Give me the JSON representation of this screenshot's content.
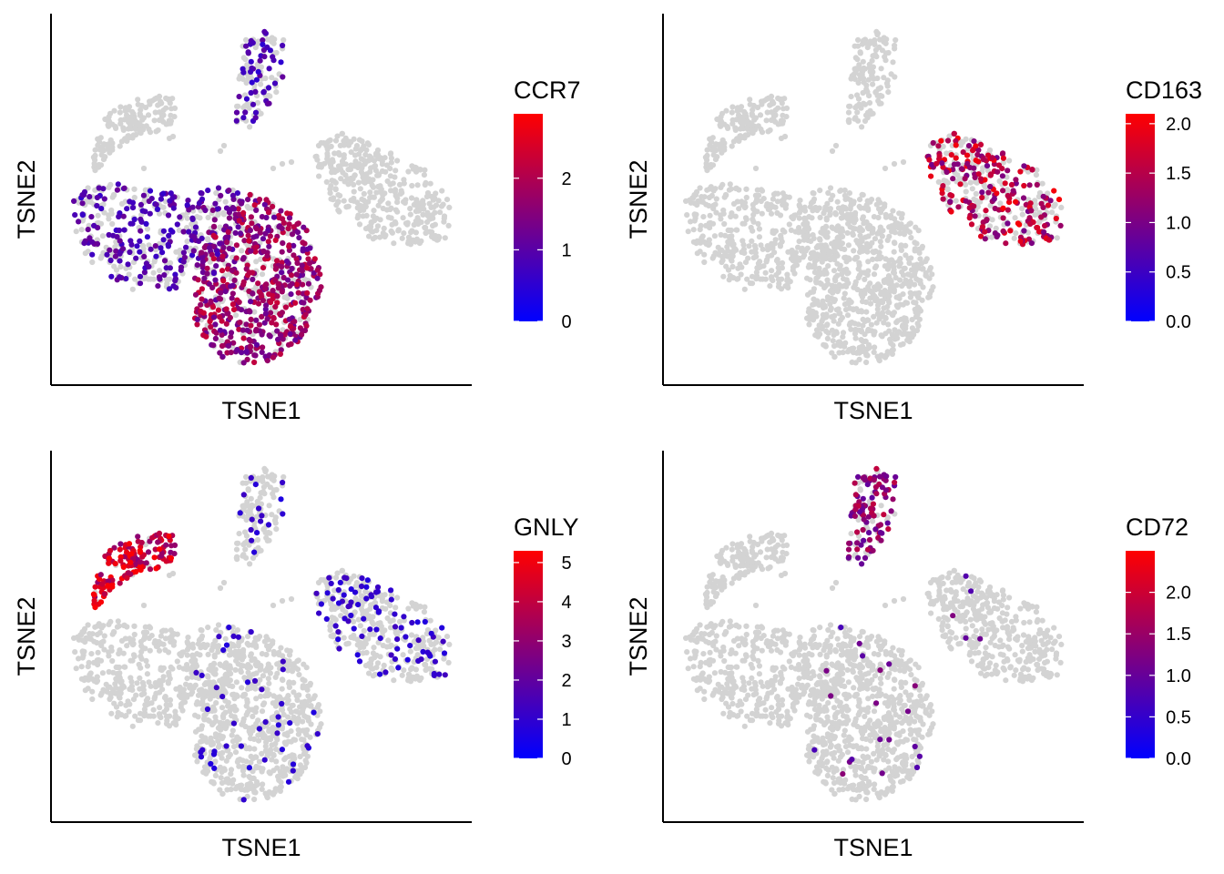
{
  "chart_data": [
    {
      "type": "scatter",
      "gene": "CCR7",
      "xlabel": "TSNE1",
      "ylabel": "TSNE2",
      "legend_title": "CCR7",
      "legend_placement": "right",
      "color_low": "#0000FF",
      "color_high": "#FF0000",
      "color_zero": "#D3D3D3",
      "scale_min": 0,
      "scale_max": 2.9,
      "legend_ticks": [
        {
          "value": 0,
          "label": "0"
        },
        {
          "value": 1,
          "label": "1"
        },
        {
          "value": 2,
          "label": "2"
        }
      ],
      "expressing_clusters": [
        {
          "cluster": "b",
          "density": 0.5,
          "level": 0.9
        },
        {
          "cluster": "c",
          "density": 0.4,
          "level": 0.8
        },
        {
          "cluster": "e",
          "density": 0.5,
          "level": 1.1
        },
        {
          "cluster": "f",
          "density": 0.72,
          "level": 1.7
        }
      ],
      "grid": false
    },
    {
      "type": "scatter",
      "gene": "CD163",
      "xlabel": "TSNE1",
      "ylabel": "TSNE2",
      "legend_title": "CD163",
      "legend_placement": "right",
      "color_low": "#0000FF",
      "color_high": "#FF0000",
      "color_zero": "#D3D3D3",
      "scale_min": 0,
      "scale_max": 2.1,
      "legend_ticks": [
        {
          "value": 0,
          "label": "0.0"
        },
        {
          "value": 0.5,
          "label": "0.5"
        },
        {
          "value": 1,
          "label": "1.0"
        },
        {
          "value": 1.5,
          "label": "1.5"
        },
        {
          "value": 2,
          "label": "2.0"
        }
      ],
      "expressing_clusters": [
        {
          "cluster": "d",
          "density": 0.55,
          "level": 1.5
        }
      ],
      "grid": false
    },
    {
      "type": "scatter",
      "gene": "GNLY",
      "xlabel": "TSNE1",
      "ylabel": "TSNE2",
      "legend_title": "GNLY",
      "legend_placement": "right",
      "color_low": "#0000FF",
      "color_high": "#FF0000",
      "color_zero": "#D3D3D3",
      "scale_min": 0,
      "scale_max": 5.3,
      "legend_ticks": [
        {
          "value": 0,
          "label": "0"
        },
        {
          "value": 1,
          "label": "1"
        },
        {
          "value": 2,
          "label": "2"
        },
        {
          "value": 3,
          "label": "3"
        },
        {
          "value": 4,
          "label": "4"
        },
        {
          "value": 5,
          "label": "5"
        }
      ],
      "expressing_clusters": [
        {
          "cluster": "a",
          "density": 0.9,
          "level": 4.3
        },
        {
          "cluster": "d",
          "density": 0.22,
          "level": 1.0
        },
        {
          "cluster": "e",
          "density": 0.06,
          "level": 0.9
        },
        {
          "cluster": "f",
          "density": 0.07,
          "level": 0.9
        },
        {
          "cluster": "c",
          "density": 0.1,
          "level": 0.9
        }
      ],
      "grid": false
    },
    {
      "type": "scatter",
      "gene": "CD72",
      "xlabel": "TSNE1",
      "ylabel": "TSNE2",
      "legend_title": "CD72",
      "legend_placement": "right",
      "color_low": "#0000FF",
      "color_high": "#FF0000",
      "color_zero": "#D3D3D3",
      "scale_min": 0,
      "scale_max": 2.5,
      "legend_ticks": [
        {
          "value": 0,
          "label": "0.0"
        },
        {
          "value": 0.5,
          "label": "0.5"
        },
        {
          "value": 1,
          "label": "1.0"
        },
        {
          "value": 1.5,
          "label": "1.5"
        },
        {
          "value": 2,
          "label": "2.0"
        }
      ],
      "expressing_clusters": [
        {
          "cluster": "c",
          "density": 0.6,
          "level": 1.4
        },
        {
          "cluster": "d",
          "density": 0.03,
          "level": 1.0
        },
        {
          "cluster": "e",
          "density": 0.04,
          "level": 1.0
        },
        {
          "cluster": "f",
          "density": 0.03,
          "level": 1.0
        }
      ],
      "grid": false
    }
  ]
}
